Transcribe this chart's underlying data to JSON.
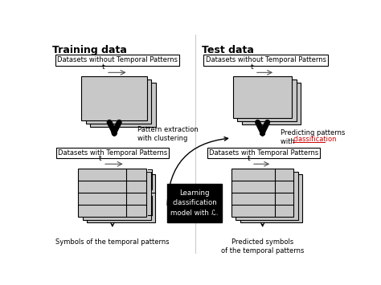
{
  "bg_color": "#ffffff",
  "gray_fill": "#c8c8c8",
  "gray_edge": "#808080",
  "black": "#000000",
  "red": "#cc0000",
  "white": "#ffffff",
  "title_left": "Training data",
  "title_right": "Test data",
  "box1_left": "Datasets without Temporal Patterns",
  "box1_right": "Datasets without Temporal Patterns",
  "box2_left": "Datasets with Temporal Patterns",
  "box2_right": "Datasets with Temporal Patterns",
  "label_arrow_left": "Pattern extraction\nwith clustering",
  "bottom_label_left": "Symbols of the temporal patterns",
  "bottom_label_right": "Predicted symbols\nof the temporal patterns",
  "center_box_text": "Learning\nclassification\nmodel with ℒ.",
  "lscale": 0.95
}
